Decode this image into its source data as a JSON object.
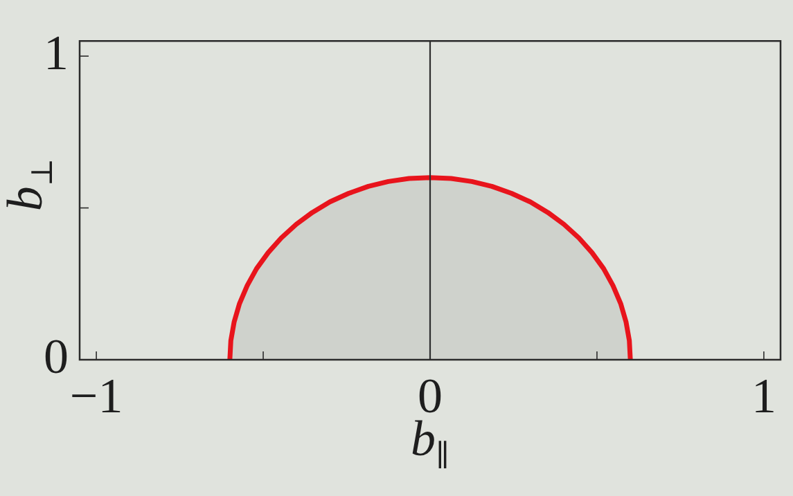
{
  "chart_data": {
    "type": "area",
    "xlabel": "b$_{∥}$",
    "ylabel": "b$_{⊥}$",
    "series": [
      {
        "color": "#e8141c",
        "x": [
          -0.6,
          -0.597,
          -0.587,
          -0.571,
          -0.548,
          -0.52,
          -0.485,
          -0.446,
          -0.401,
          -0.353,
          -0.3,
          -0.244,
          -0.185,
          -0.125,
          -0.063,
          0,
          0.063,
          0.125,
          0.185,
          0.244,
          0.3,
          0.353,
          0.401,
          0.446,
          0.485,
          0.52,
          0.548,
          0.571,
          0.587,
          0.597,
          0.6
        ],
        "values": [
          0,
          0.063,
          0.125,
          0.185,
          0.244,
          0.3,
          0.353,
          0.401,
          0.446,
          0.485,
          0.52,
          0.548,
          0.571,
          0.587,
          0.597,
          0.6,
          0.597,
          0.587,
          0.571,
          0.548,
          0.52,
          0.485,
          0.446,
          0.401,
          0.353,
          0.3,
          0.244,
          0.185,
          0.125,
          0.063,
          0
        ]
      }
    ],
    "xlim": [
      -1.05,
      1.05
    ],
    "xticks": [
      {
        "value": -1,
        "label": "−1"
      },
      {
        "value": -0.5,
        "label": null
      },
      0,
      {
        "value": 0.5,
        "label": null
      },
      1
    ],
    "ylim": [
      0,
      1.05
    ],
    "yticks": [
      0,
      {
        "value": 0.5,
        "label": null
      },
      1
    ],
    "ref_lines": [
      {
        "axis": "x",
        "value": 0,
        "color": "#2e2e2e",
        "line_style": "solid"
      }
    ],
    "grid": false,
    "legend": false,
    "marker": "none",
    "line_style": "solid"
  }
}
